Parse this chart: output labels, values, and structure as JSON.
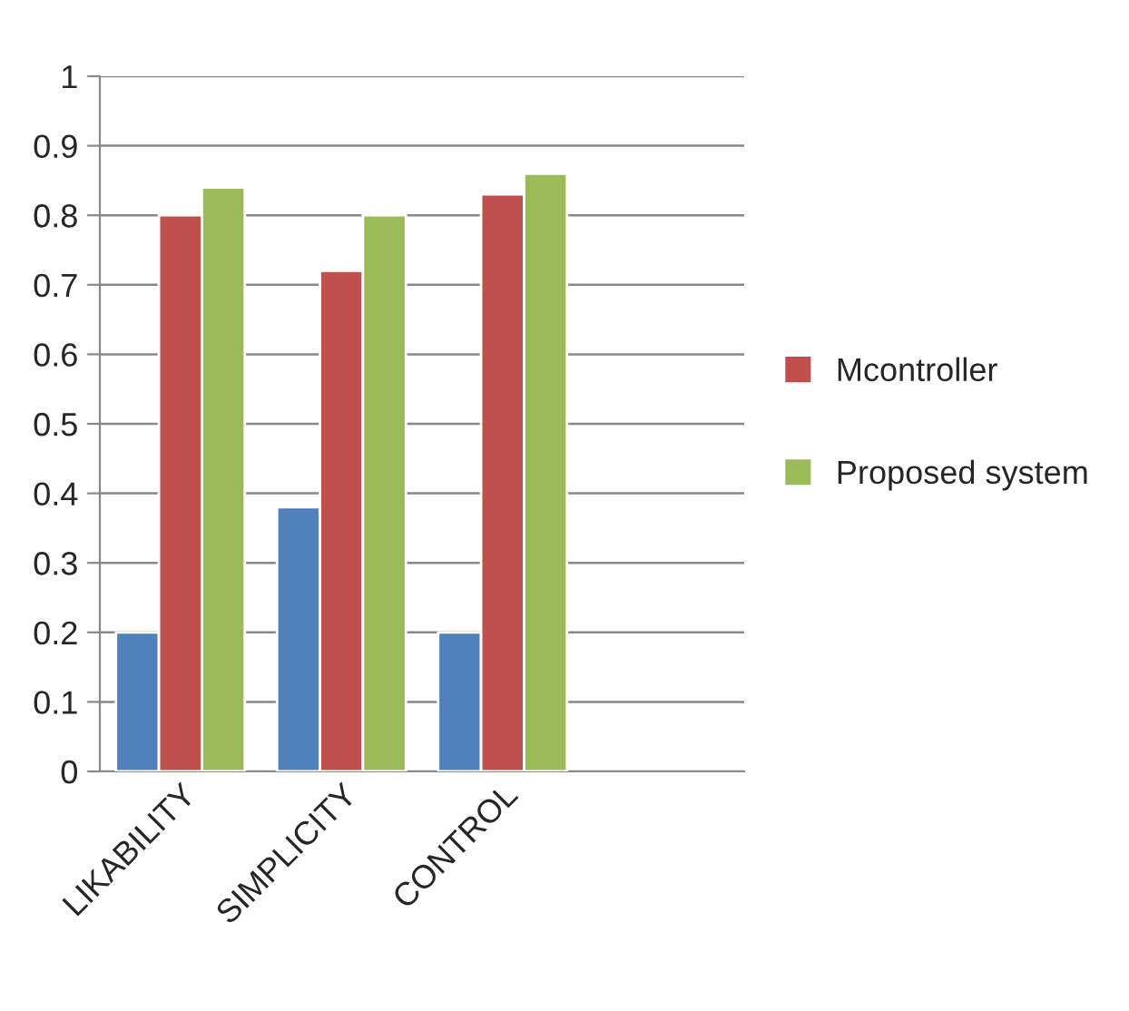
{
  "chart_data": {
    "type": "bar",
    "categories": [
      "LIKABILITY",
      "SIMPLICITY",
      "CONTROL",
      null
    ],
    "series": [
      {
        "color": "#4f81bd",
        "values": [
          0.2,
          0.38,
          0.2,
          null
        ]
      },
      {
        "name": "Mcontroller",
        "color": "#c0504d",
        "values": [
          0.8,
          0.72,
          0.83,
          null
        ]
      },
      {
        "name": "Proposed system",
        "color": "#9bbb59",
        "values": [
          0.84,
          0.8,
          0.86,
          null
        ]
      }
    ],
    "ylim": [
      0,
      1
    ],
    "yticks": [
      0,
      0.1,
      0.2,
      0.3,
      0.4,
      0.5,
      0.6,
      0.7,
      0.8,
      0.9,
      1
    ],
    "grid": "y",
    "legend": "right"
  }
}
